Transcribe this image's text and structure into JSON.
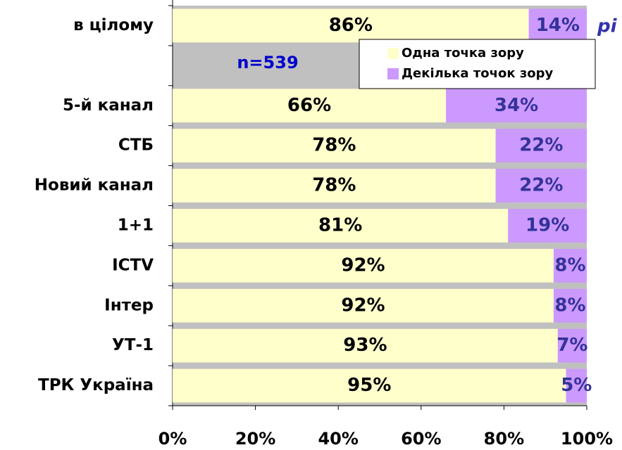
{
  "chart_data": {
    "type": "stacked-bar-horizontal",
    "categories": [
      "в цілому",
      null,
      "5-й канал",
      "СТБ",
      "Новий канал",
      "1+1",
      "ICTV",
      "Інтер",
      "УТ-1",
      "ТРК Україна"
    ],
    "series": [
      {
        "name": "Одна точка зору",
        "color": "#ffffcc",
        "label_color": "#000000",
        "values": [
          86,
          null,
          66,
          78,
          78,
          81,
          92,
          92,
          93,
          95
        ],
        "value_labels": [
          "86%",
          null,
          "66%",
          "78%",
          "78%",
          "81%",
          "92%",
          "92%",
          "93%",
          "95%"
        ]
      },
      {
        "name": "Декілька точок зору",
        "color": "#cc99ff",
        "label_color": "#333399",
        "values": [
          14,
          null,
          34,
          22,
          22,
          19,
          8,
          8,
          7,
          5
        ],
        "value_labels": [
          "14%",
          null,
          "34%",
          "22%",
          "22%",
          "19%",
          "8%",
          "8%",
          "7%",
          "5%"
        ]
      }
    ],
    "xlim": [
      0,
      100
    ],
    "xticks": [
      {
        "value": 0,
        "label": "0%"
      },
      {
        "value": 20,
        "label": "20%"
      },
      {
        "value": 40,
        "label": "40%"
      },
      {
        "value": 60,
        "label": "60%"
      },
      {
        "value": 80,
        "label": "80%"
      },
      {
        "value": 100,
        "label": "100%"
      }
    ],
    "annotations": [
      "n=539",
      "рі"
    ],
    "legend": "upper right",
    "background": "#c0c0c0"
  }
}
